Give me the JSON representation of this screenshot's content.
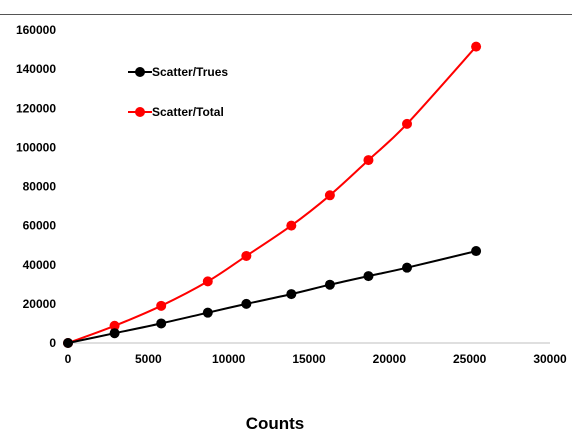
{
  "chart_data": {
    "type": "scatter",
    "xlabel": "Counts",
    "ylabel": "",
    "xlim": [
      0,
      30000
    ],
    "ylim": [
      0,
      160000
    ],
    "xticks": [
      0,
      5000,
      10000,
      15000,
      20000,
      25000,
      30000
    ],
    "yticks": [
      0,
      20000,
      40000,
      60000,
      80000,
      100000,
      120000,
      140000,
      160000
    ],
    "grid": false,
    "legend_position": "top-left",
    "series": [
      {
        "name": "Scatter/Trues",
        "color": "#000000",
        "x": [
          0,
          2900,
          5800,
          8700,
          11100,
          13900,
          16300,
          18700,
          21100,
          25400
        ],
        "y": [
          0,
          5000,
          10000,
          15500,
          20000,
          25000,
          29800,
          34200,
          38500,
          47000
        ]
      },
      {
        "name": "Scatter/Total",
        "color": "#ff0000",
        "x": [
          0,
          2900,
          5800,
          8700,
          11100,
          13900,
          16300,
          18700,
          21100,
          25400
        ],
        "y": [
          0,
          8800,
          19000,
          31500,
          44500,
          60000,
          75500,
          93500,
          112000,
          151500
        ]
      }
    ]
  }
}
